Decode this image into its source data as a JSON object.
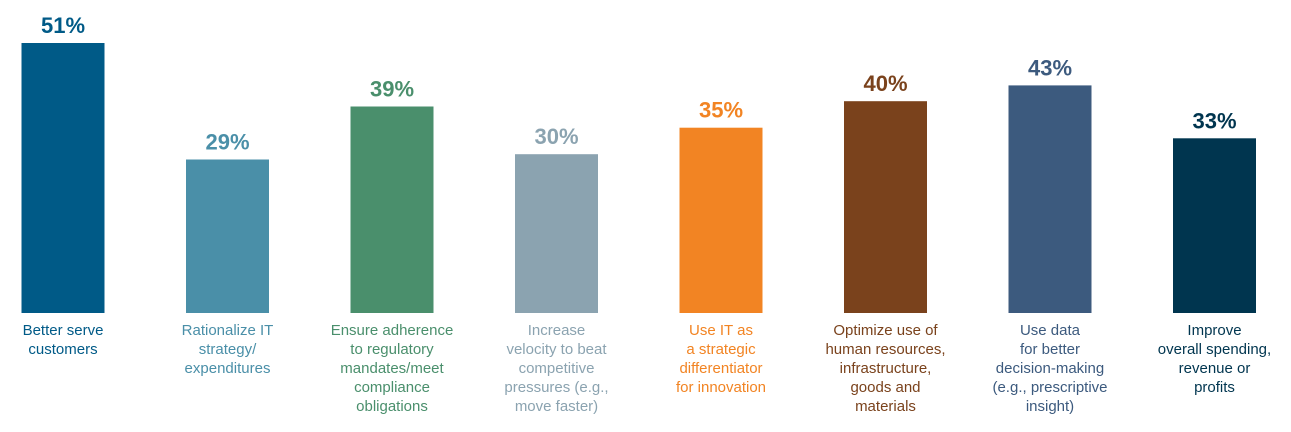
{
  "chart_data": {
    "type": "bar",
    "title": "",
    "xlabel": "",
    "ylabel": "",
    "ylim": [
      0,
      51
    ],
    "grid": false,
    "categories": [
      [
        "Better serve",
        "customers"
      ],
      [
        "Rationalize IT",
        "strategy/",
        "expenditures"
      ],
      [
        "Ensure adherence",
        "to regulatory",
        "mandates/meet",
        "compliance",
        "obligations"
      ],
      [
        "Increase",
        "velocity to beat",
        "competitive",
        "pressures (e.g.,",
        "move faster)"
      ],
      [
        "Use IT as",
        "a strategic",
        "differentiator",
        "for innovation"
      ],
      [
        "Optimize use of",
        "human resources,",
        "infrastructure,",
        "goods and",
        "materials"
      ],
      [
        "Use data",
        "for better",
        "decision-making",
        "(e.g., prescriptive",
        "insight)"
      ],
      [
        "Improve",
        "overall spending,",
        "revenue or",
        "profits"
      ]
    ],
    "values": [
      51,
      29,
      39,
      30,
      35,
      40,
      43,
      33
    ],
    "value_labels": [
      "51%",
      "29%",
      "39%",
      "30%",
      "35%",
      "40%",
      "43%",
      "33%"
    ],
    "colors": [
      "#005a87",
      "#4a8fa8",
      "#4a8f6c",
      "#8ba3b0",
      "#f28423",
      "#7a421c",
      "#3c5a7e",
      "#00354f"
    ]
  }
}
